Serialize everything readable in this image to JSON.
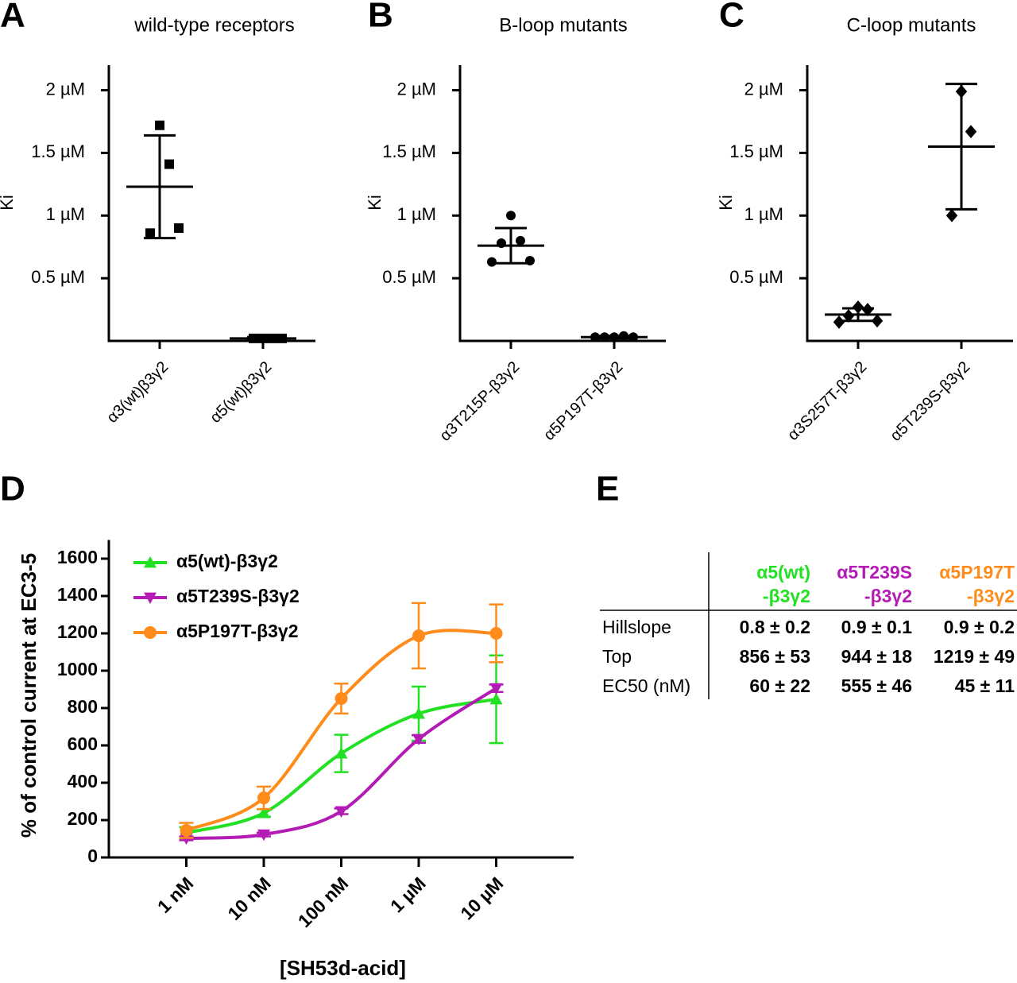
{
  "chart_data": [
    {
      "type": "dotplot",
      "panel": "A",
      "title": "wild-type receptors",
      "ylabel": "Ki",
      "categories": [
        "α3(wt)β3γ2",
        "α5(wt)β3γ2"
      ],
      "marker": "square",
      "color": "#000000",
      "points": [
        [
          1.72,
          1.41,
          0.86,
          0.9
        ],
        [
          0.02,
          0.02,
          0.02,
          0.02
        ]
      ],
      "mean": [
        1.23,
        0.02
      ],
      "sd": [
        0.41,
        0.01
      ],
      "ylim": [
        0,
        2.2
      ],
      "yticks": [
        {
          "value": 0.5,
          "label": "0.5 µM"
        },
        {
          "value": 1,
          "label": "1 µM"
        },
        {
          "value": 1.5,
          "label": "1.5 µM"
        },
        {
          "value": 2,
          "label": "2 µM"
        }
      ]
    },
    {
      "type": "dotplot",
      "panel": "B",
      "title": "B-loop mutants",
      "ylabel": "Ki",
      "categories": [
        "α3T215P-β3γ2",
        "α5P197T-β3γ2"
      ],
      "marker": "circle",
      "color": "#000000",
      "points": [
        [
          1.0,
          0.8,
          0.78,
          0.64,
          0.63
        ],
        [
          0.03,
          0.04,
          0.03,
          0.03,
          0.03
        ]
      ],
      "mean": [
        0.76,
        0.03
      ],
      "sd": [
        0.14,
        0.01
      ],
      "ylim": [
        0,
        2.2
      ],
      "yticks": [
        {
          "value": 0.5,
          "label": "0.5 µM"
        },
        {
          "value": 1,
          "label": "1 µM"
        },
        {
          "value": 1.5,
          "label": "1.5 µM"
        },
        {
          "value": 2,
          "label": "2 µM"
        }
      ]
    },
    {
      "type": "dotplot",
      "panel": "C",
      "title": "C-loop mutants",
      "ylabel": "Ki",
      "categories": [
        "α3S257T-β3γ2",
        "α5T239S-β3γ2"
      ],
      "marker": "diamond",
      "color": "#000000",
      "points": [
        [
          0.27,
          0.25,
          0.2,
          0.16,
          0.15
        ],
        [
          1.99,
          1.67,
          1.0
        ]
      ],
      "mean": [
        0.21,
        1.55
      ],
      "sd": [
        0.05,
        0.5
      ],
      "ylim": [
        0,
        2.2
      ],
      "yticks": [
        {
          "value": 0.5,
          "label": "0.5 µM"
        },
        {
          "value": 1,
          "label": "1 µM"
        },
        {
          "value": 1.5,
          "label": "1.5 µM"
        },
        {
          "value": 2,
          "label": "2 µM"
        }
      ]
    },
    {
      "type": "line",
      "panel": "D",
      "xlabel": "[SH53d-acid]",
      "ylabel": "% of control current at EC3-5",
      "x": [
        1,
        10,
        100,
        1000,
        10000
      ],
      "xscale": "log",
      "xlim": [
        0.1,
        100000
      ],
      "xticks": [
        {
          "value": 1,
          "label": "1 nM"
        },
        {
          "value": 10,
          "label": "10 nM"
        },
        {
          "value": 100,
          "label": "100 nM"
        },
        {
          "value": 1000,
          "label": "1 µM"
        },
        {
          "value": 10000,
          "label": "10 µM"
        }
      ],
      "ylim": [
        0,
        1700
      ],
      "yticks": [
        0,
        200,
        400,
        600,
        800,
        1000,
        1200,
        1400,
        1600
      ],
      "legend": "upper left",
      "series": [
        {
          "name": "α5(wt)-β3γ2",
          "color": "#22e022",
          "marker": "triangle-up",
          "values": [
            132,
            238,
            557,
            770,
            847
          ],
          "errors": [
            30,
            20,
            100,
            145,
            235
          ]
        },
        {
          "name": "α5T239S-β3γ2",
          "color": "#b41ab4",
          "marker": "triangle-down",
          "values": [
            102,
            123,
            247,
            634,
            906
          ],
          "errors": [
            10,
            10,
            15,
            20,
            20
          ]
        },
        {
          "name": "α5P197T-β3γ2",
          "color": "#ff8c1a",
          "marker": "circle",
          "values": [
            145,
            319,
            851,
            1187,
            1200
          ],
          "errors": [
            40,
            60,
            80,
            175,
            155
          ]
        }
      ]
    }
  ],
  "table": {
    "panel": "E",
    "columns": [
      {
        "lines": [
          "α5(wt)",
          "-β3γ2"
        ],
        "color": "#22e022"
      },
      {
        "lines": [
          "α5T239S",
          "-β3γ2"
        ],
        "color": "#b41ab4"
      },
      {
        "lines": [
          "α5P197T",
          "-β3γ2"
        ],
        "color": "#ff8c1a"
      }
    ],
    "rows": [
      [
        "Hillslope",
        "0.8 ± 0.2",
        "0.9 ± 0.1",
        "0.9 ± 0.2"
      ],
      [
        "Top",
        "856 ± 53",
        "944 ± 18",
        "1219 ± 49"
      ],
      [
        "EC50 (nM)",
        "60 ± 22",
        "555 ± 46",
        "45 ± 11"
      ]
    ]
  }
}
